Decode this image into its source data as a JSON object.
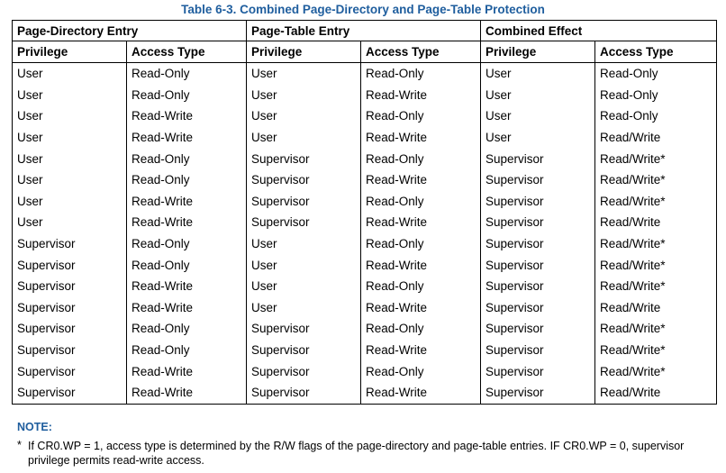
{
  "title": "Table 6-3.  Combined Page-Directory and Page-Table Protection",
  "group_headers": [
    "Page-Directory Entry",
    "Page-Table Entry",
    "Combined Effect"
  ],
  "column_headers": [
    "Privilege",
    "Access Type",
    "Privilege",
    "Access Type",
    "Privilege",
    "Access Type"
  ],
  "rows": [
    [
      "User",
      "Read-Only",
      "User",
      "Read-Only",
      "User",
      "Read-Only"
    ],
    [
      "User",
      "Read-Only",
      "User",
      "Read-Write",
      "User",
      "Read-Only"
    ],
    [
      "User",
      "Read-Write",
      "User",
      "Read-Only",
      "User",
      "Read-Only"
    ],
    [
      "User",
      "Read-Write",
      "User",
      "Read-Write",
      "User",
      "Read/Write"
    ],
    [
      "User",
      "Read-Only",
      "Supervisor",
      "Read-Only",
      "Supervisor",
      "Read/Write*"
    ],
    [
      "User",
      "Read-Only",
      "Supervisor",
      "Read-Write",
      "Supervisor",
      "Read/Write*"
    ],
    [
      "User",
      "Read-Write",
      "Supervisor",
      "Read-Only",
      "Supervisor",
      "Read/Write*"
    ],
    [
      "User",
      "Read-Write",
      "Supervisor",
      "Read-Write",
      "Supervisor",
      "Read/Write"
    ],
    [
      "Supervisor",
      "Read-Only",
      "User",
      "Read-Only",
      "Supervisor",
      "Read/Write*"
    ],
    [
      "Supervisor",
      "Read-Only",
      "User",
      "Read-Write",
      "Supervisor",
      "Read/Write*"
    ],
    [
      "Supervisor",
      "Read-Write",
      "User",
      "Read-Only",
      "Supervisor",
      "Read/Write*"
    ],
    [
      "Supervisor",
      "Read-Write",
      "User",
      "Read-Write",
      "Supervisor",
      "Read/Write"
    ],
    [
      "Supervisor",
      "Read-Only",
      "Supervisor",
      "Read-Only",
      "Supervisor",
      "Read/Write*"
    ],
    [
      "Supervisor",
      "Read-Only",
      "Supervisor",
      "Read-Write",
      "Supervisor",
      "Read/Write*"
    ],
    [
      "Supervisor",
      "Read-Write",
      "Supervisor",
      "Read-Only",
      "Supervisor",
      "Read/Write*"
    ],
    [
      "Supervisor",
      "Read-Write",
      "Supervisor",
      "Read-Write",
      "Supervisor",
      "Read/Write"
    ]
  ],
  "note": {
    "title": "NOTE:",
    "marker": "*",
    "text": "If CR0.WP = 1, access type is determined by the R/W flags of the page-directory and page-table entries. IF CR0.WP = 0, supervisor privilege permits read-write access."
  },
  "colors": {
    "heading_blue": "#1f5e9e"
  }
}
